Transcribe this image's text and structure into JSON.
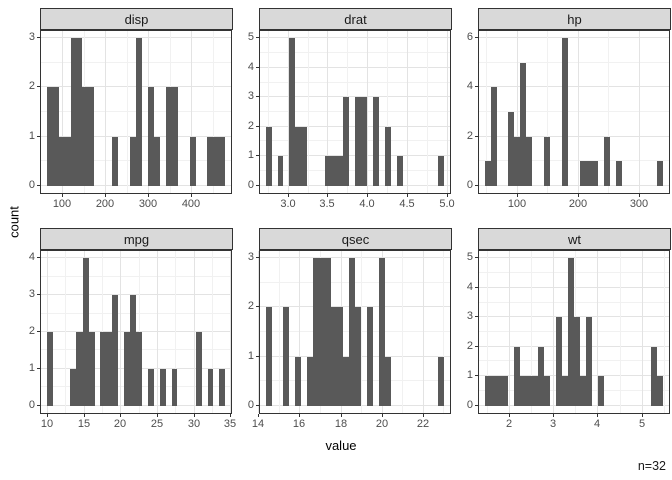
{
  "figure": {
    "ylabel": "count",
    "xlabel": "value",
    "caption": "n=32"
  },
  "chart_data": {
    "type": "bar",
    "subtype": "faceted-histogram",
    "title": "",
    "xlabel": "value",
    "ylabel": "count",
    "caption": "n=32",
    "n": 32,
    "grid": "on",
    "legend": "none",
    "style": {
      "bar_fill": "#595959",
      "panel_border": "#333333",
      "strip_fill": "#d9d9d9",
      "grid_major": "#e3e3e3",
      "grid_minor": "#f1f1f1",
      "tick_label_color": "#4d4d4d",
      "text_color": "#1a1a1a"
    },
    "facets": [
      {
        "label": "disp",
        "x_domain": [
          51.0,
          492.1
        ],
        "x_ticks": [
          100,
          200,
          300,
          400
        ],
        "x_tick_labels": [
          "100",
          "200",
          "300",
          "400"
        ],
        "x_minor": [
          150,
          250,
          350,
          450
        ],
        "y_max": 3,
        "y_ticks": [
          0,
          1,
          2,
          3
        ],
        "bars": [
          {
            "x0": 64.2,
            "x1": 91.8,
            "count": 2
          },
          {
            "x0": 91.8,
            "x1": 119.5,
            "count": 1
          },
          {
            "x0": 119.5,
            "x1": 147.1,
            "count": 3
          },
          {
            "x0": 147.1,
            "x1": 174.8,
            "count": 2
          },
          {
            "x0": 216.2,
            "x1": 230.1,
            "count": 1
          },
          {
            "x0": 257.7,
            "x1": 271.5,
            "count": 1
          },
          {
            "x0": 271.5,
            "x1": 285.4,
            "count": 3
          },
          {
            "x0": 299.2,
            "x1": 313.0,
            "count": 2
          },
          {
            "x0": 313.0,
            "x1": 326.8,
            "count": 1
          },
          {
            "x0": 340.7,
            "x1": 368.3,
            "count": 2
          },
          {
            "x0": 396.0,
            "x1": 409.8,
            "count": 1
          },
          {
            "x0": 437.4,
            "x1": 478.9,
            "count": 1
          }
        ]
      },
      {
        "label": "drat",
        "x_domain": [
          2.652,
          5.039
        ],
        "x_ticks": [
          3.0,
          3.5,
          4.0,
          4.5,
          5.0
        ],
        "x_tick_labels": [
          "3.0",
          "3.5",
          "4.0",
          "4.5",
          "5.0"
        ],
        "x_minor": [
          2.75,
          3.25,
          3.75,
          4.25,
          4.75
        ],
        "y_max": 5,
        "y_ticks": [
          0,
          1,
          2,
          3,
          4,
          5
        ],
        "bars": [
          {
            "x0": 2.723,
            "x1": 2.797,
            "count": 2
          },
          {
            "x0": 2.872,
            "x1": 2.947,
            "count": 1
          },
          {
            "x0": 3.022,
            "x1": 3.097,
            "count": 5
          },
          {
            "x0": 3.097,
            "x1": 3.246,
            "count": 2
          },
          {
            "x0": 3.471,
            "x1": 3.695,
            "count": 1
          },
          {
            "x0": 3.695,
            "x1": 3.77,
            "count": 3
          },
          {
            "x0": 3.845,
            "x1": 3.995,
            "count": 3
          },
          {
            "x0": 4.069,
            "x1": 4.144,
            "count": 3
          },
          {
            "x0": 4.219,
            "x1": 4.294,
            "count": 2
          },
          {
            "x0": 4.369,
            "x1": 4.444,
            "count": 1
          },
          {
            "x0": 4.893,
            "x1": 4.967,
            "count": 1
          }
        ]
      },
      {
        "label": "hp",
        "x_domain": [
          37.9,
          349.2
        ],
        "x_ticks": [
          100,
          200,
          300
        ],
        "x_tick_labels": [
          "100",
          "200",
          "300"
        ],
        "x_minor": [
          50,
          150,
          250
        ],
        "y_max": 6,
        "y_ticks": [
          0,
          2,
          4,
          6
        ],
        "bars": [
          {
            "x0": 47.1,
            "x1": 56.9,
            "count": 1
          },
          {
            "x0": 56.9,
            "x1": 66.6,
            "count": 4
          },
          {
            "x0": 86.2,
            "x1": 95.9,
            "count": 3
          },
          {
            "x0": 95.9,
            "x1": 105.7,
            "count": 2
          },
          {
            "x0": 105.7,
            "x1": 115.4,
            "count": 5
          },
          {
            "x0": 115.4,
            "x1": 125.2,
            "count": 2
          },
          {
            "x0": 144.7,
            "x1": 154.5,
            "count": 2
          },
          {
            "x0": 174.0,
            "x1": 183.7,
            "count": 6
          },
          {
            "x0": 203.3,
            "x1": 232.5,
            "count": 1
          },
          {
            "x0": 242.3,
            "x1": 252.0,
            "count": 2
          },
          {
            "x0": 261.8,
            "x1": 271.6,
            "count": 1
          },
          {
            "x0": 330.1,
            "x1": 339.9,
            "count": 1
          }
        ]
      },
      {
        "label": "mpg",
        "x_domain": [
          9.2,
          35.1
        ],
        "x_ticks": [
          10,
          15,
          20,
          25,
          30,
          35
        ],
        "x_tick_labels": [
          "10",
          "15",
          "20",
          "25",
          "30",
          "35"
        ],
        "x_minor": [
          12.5,
          17.5,
          22.5,
          27.5,
          32.5
        ],
        "y_max": 4,
        "y_ticks": [
          0,
          1,
          2,
          3,
          4
        ],
        "bars": [
          {
            "x0": 10.0,
            "x1": 10.8,
            "count": 2
          },
          {
            "x0": 13.2,
            "x1": 14.0,
            "count": 1
          },
          {
            "x0": 14.0,
            "x1": 14.9,
            "count": 2
          },
          {
            "x0": 14.9,
            "x1": 15.7,
            "count": 4
          },
          {
            "x0": 15.7,
            "x1": 16.5,
            "count": 2
          },
          {
            "x0": 17.3,
            "x1": 18.9,
            "count": 2
          },
          {
            "x0": 18.9,
            "x1": 19.7,
            "count": 3
          },
          {
            "x0": 20.5,
            "x1": 21.3,
            "count": 2
          },
          {
            "x0": 21.3,
            "x1": 22.2,
            "count": 3
          },
          {
            "x0": 22.2,
            "x1": 23.0,
            "count": 2
          },
          {
            "x0": 23.8,
            "x1": 24.6,
            "count": 1
          },
          {
            "x0": 25.4,
            "x1": 26.2,
            "count": 1
          },
          {
            "x0": 27.0,
            "x1": 27.8,
            "count": 1
          },
          {
            "x0": 30.3,
            "x1": 31.1,
            "count": 2
          },
          {
            "x0": 31.9,
            "x1": 32.7,
            "count": 1
          },
          {
            "x0": 33.5,
            "x1": 34.3,
            "count": 1
          }
        ]
      },
      {
        "label": "qsec",
        "x_domain": [
          14.08,
          23.32
        ],
        "x_ticks": [
          14,
          16,
          18,
          20,
          22
        ],
        "x_tick_labels": [
          "14",
          "16",
          "18",
          "20",
          "22"
        ],
        "x_minor": [
          15,
          17,
          19,
          21,
          23
        ],
        "y_max": 3,
        "y_ticks": [
          0,
          1,
          2,
          3
        ],
        "bars": [
          {
            "x0": 14.36,
            "x1": 14.64,
            "count": 2
          },
          {
            "x0": 15.22,
            "x1": 15.51,
            "count": 2
          },
          {
            "x0": 15.8,
            "x1": 16.09,
            "count": 1
          },
          {
            "x0": 16.38,
            "x1": 16.67,
            "count": 1
          },
          {
            "x0": 16.67,
            "x1": 17.54,
            "count": 3
          },
          {
            "x0": 17.54,
            "x1": 18.12,
            "count": 2
          },
          {
            "x0": 18.12,
            "x1": 18.41,
            "count": 1
          },
          {
            "x0": 18.41,
            "x1": 18.7,
            "count": 3
          },
          {
            "x0": 18.7,
            "x1": 18.99,
            "count": 2
          },
          {
            "x0": 19.28,
            "x1": 19.57,
            "count": 2
          },
          {
            "x0": 19.86,
            "x1": 20.15,
            "count": 3
          },
          {
            "x0": 20.15,
            "x1": 20.44,
            "count": 1
          },
          {
            "x0": 22.76,
            "x1": 23.05,
            "count": 1
          }
        ]
      },
      {
        "label": "wt",
        "x_domain": [
          1.32,
          5.62
        ],
        "x_ticks": [
          2,
          3,
          4,
          5
        ],
        "x_tick_labels": [
          "2",
          "3",
          "4",
          "5"
        ],
        "x_minor": [
          1.5,
          2.5,
          3.5,
          4.5,
          5.5
        ],
        "y_max": 5,
        "y_ticks": [
          0,
          1,
          2,
          3,
          4,
          5
        ],
        "bars": [
          {
            "x0": 1.446,
            "x1": 1.985,
            "count": 1
          },
          {
            "x0": 2.12,
            "x1": 2.255,
            "count": 2
          },
          {
            "x0": 2.255,
            "x1": 2.659,
            "count": 1
          },
          {
            "x0": 2.659,
            "x1": 2.794,
            "count": 2
          },
          {
            "x0": 2.794,
            "x1": 2.929,
            "count": 1
          },
          {
            "x0": 3.064,
            "x1": 3.199,
            "count": 3
          },
          {
            "x0": 3.199,
            "x1": 3.334,
            "count": 1
          },
          {
            "x0": 3.334,
            "x1": 3.468,
            "count": 5
          },
          {
            "x0": 3.468,
            "x1": 3.603,
            "count": 3
          },
          {
            "x0": 3.603,
            "x1": 3.738,
            "count": 1
          },
          {
            "x0": 3.738,
            "x1": 3.873,
            "count": 3
          },
          {
            "x0": 4.008,
            "x1": 4.143,
            "count": 1
          },
          {
            "x0": 5.222,
            "x1": 5.356,
            "count": 2
          },
          {
            "x0": 5.356,
            "x1": 5.491,
            "count": 1
          }
        ]
      }
    ]
  }
}
